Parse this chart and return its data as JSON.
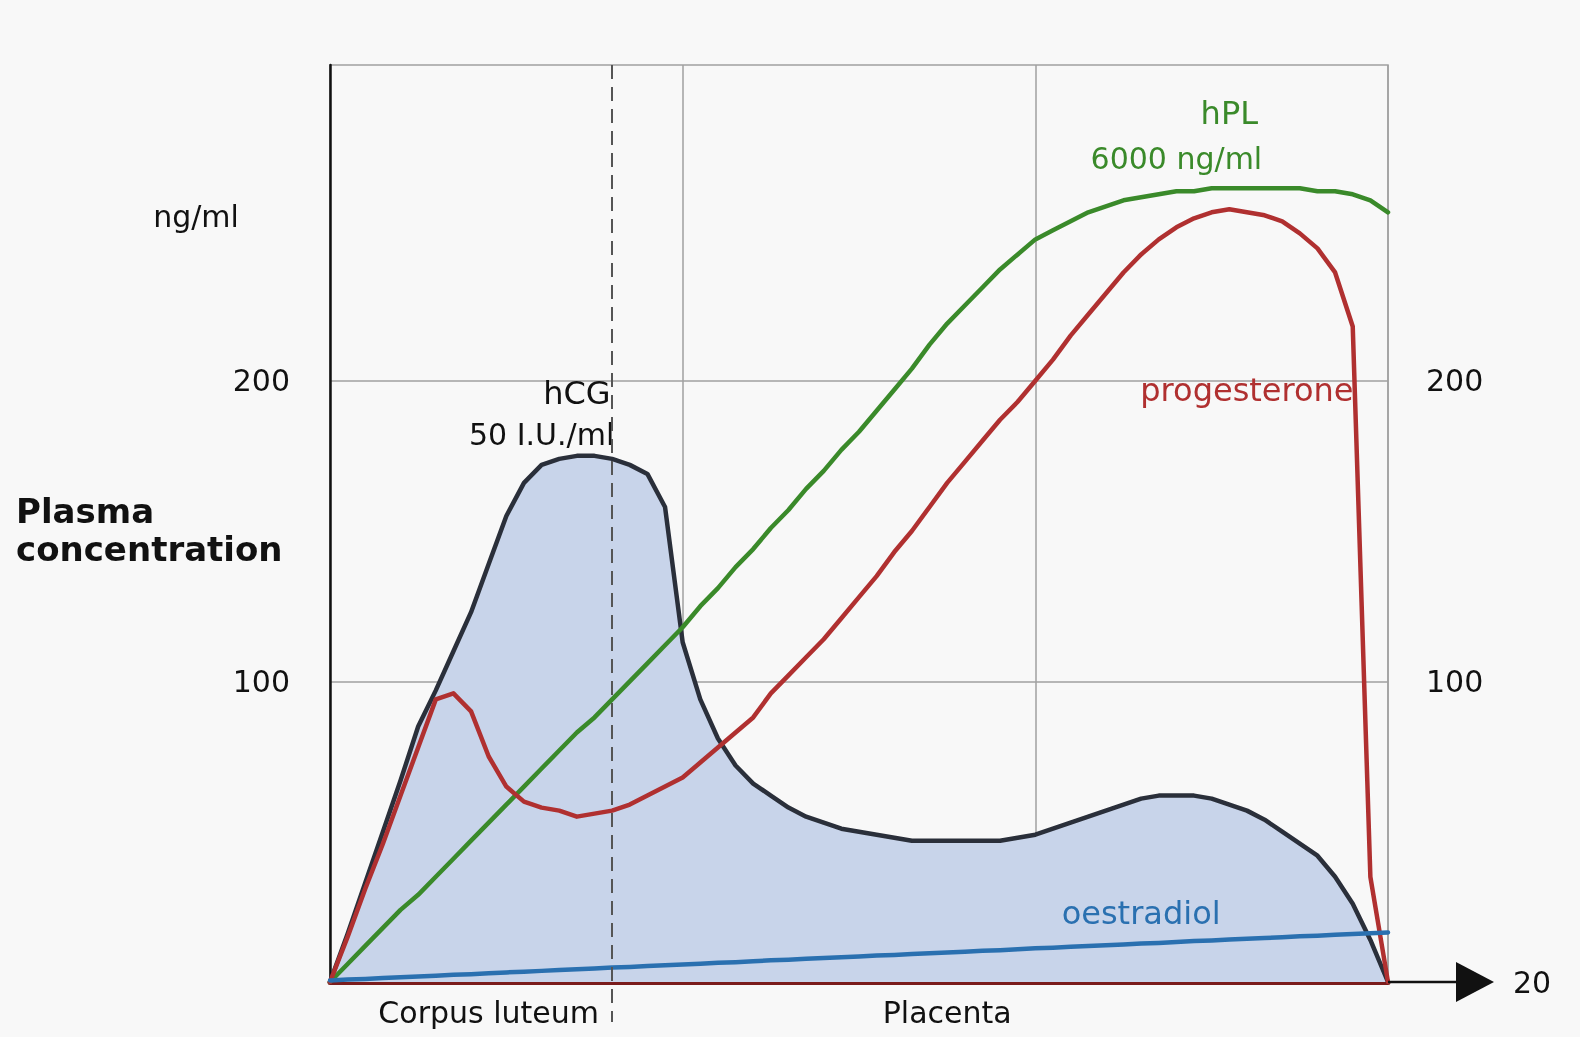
{
  "chart_data": {
    "type": "line",
    "ylabel": "Plasma concentration",
    "annotations": [
      "ng/ml",
      "6000 ng/ml",
      "50 I.U./ml",
      "Corpus luteum",
      "Placenta",
      "20"
    ],
    "categories": [
      null,
      null,
      null,
      null,
      null,
      null,
      null,
      null,
      null,
      null,
      null,
      null,
      null,
      null,
      null,
      null,
      null,
      null,
      null,
      null,
      null,
      null,
      null,
      null,
      null,
      null,
      null,
      null,
      null,
      null,
      null,
      null,
      null,
      null,
      null,
      null,
      null,
      null,
      null,
      null,
      null,
      null,
      null,
      null,
      null,
      null,
      null,
      null,
      null,
      null,
      null,
      null,
      null,
      null,
      null,
      null,
      null,
      null,
      null,
      null,
      null
    ],
    "ylim": [
      0,
      305
    ],
    "yticks": [
      100,
      200
    ],
    "y2lim": [
      0,
      305
    ],
    "y2ticks": [
      100,
      200
    ],
    "grid": true,
    "legend": false,
    "marker": "none",
    "series": [
      {
        "name": "hCG",
        "type": "area",
        "color": "#2a2f3a",
        "values": [
          0,
          16,
          33,
          50,
          67,
          85,
          97,
          110,
          123,
          139,
          155,
          166,
          172,
          174,
          175,
          175,
          174,
          172,
          169,
          158,
          113,
          94,
          81,
          72,
          66,
          62,
          58,
          55,
          53,
          51,
          50,
          49,
          48,
          47,
          47,
          47,
          47,
          47,
          47,
          48,
          49,
          51,
          53,
          55,
          57,
          59,
          61,
          62,
          62,
          62,
          61,
          59,
          57,
          54,
          50,
          46,
          42,
          35,
          26,
          14,
          0
        ]
      },
      {
        "name": "hPL",
        "color": "#3a8a2a",
        "values": [
          0,
          6,
          12,
          18,
          24,
          29,
          35,
          41,
          47,
          53,
          59,
          65,
          71,
          77,
          83,
          88,
          94,
          100,
          106,
          112,
          118,
          125,
          131,
          138,
          144,
          151,
          157,
          164,
          170,
          177,
          183,
          190,
          197,
          204,
          212,
          219,
          225,
          231,
          237,
          242,
          247,
          250,
          253,
          256,
          258,
          260,
          261,
          262,
          263,
          263,
          264,
          264,
          264,
          264,
          264,
          264,
          263,
          263,
          262,
          260,
          256
        ]
      },
      {
        "name": "progesterone",
        "color": "#b03030",
        "values": [
          0,
          15,
          31,
          46,
          62,
          78,
          94,
          96,
          90,
          75,
          65,
          60,
          58,
          57,
          55,
          56,
          57,
          59,
          62,
          65,
          68,
          73,
          78,
          83,
          88,
          96,
          102,
          108,
          114,
          121,
          128,
          135,
          143,
          150,
          158,
          166,
          173,
          180,
          187,
          193,
          200,
          207,
          215,
          222,
          229,
          236,
          242,
          247,
          251,
          254,
          256,
          257,
          256,
          255,
          253,
          249,
          244,
          236,
          218,
          35,
          0
        ]
      },
      {
        "name": "oestradiol",
        "color": "#2a70b0",
        "values": [
          0.5,
          0.8,
          1.0,
          1.3,
          1.6,
          1.8,
          2.1,
          2.4,
          2.6,
          2.9,
          3.2,
          3.4,
          3.7,
          4.0,
          4.2,
          4.5,
          4.8,
          5.0,
          5.3,
          5.6,
          5.8,
          6.1,
          6.4,
          6.6,
          6.9,
          7.2,
          7.4,
          7.7,
          8.0,
          8.2,
          8.5,
          8.8,
          9.0,
          9.3,
          9.6,
          9.8,
          10.1,
          10.4,
          10.6,
          10.9,
          11.2,
          11.4,
          11.7,
          12.0,
          12.2,
          12.5,
          12.8,
          13.0,
          13.3,
          13.6,
          13.8,
          14.1,
          14.4,
          14.6,
          14.9,
          15.2,
          15.4,
          15.7,
          16.0,
          16.2,
          16.5
        ]
      }
    ]
  }
}
